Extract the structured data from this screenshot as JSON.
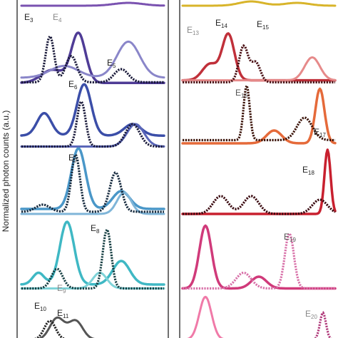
{
  "chart_data": {
    "type": "line",
    "ylabel": "Normalized photon counts (a.u.)",
    "grid": false,
    "legend": "none",
    "columns": [
      {
        "panels": [
          {
            "labels": [],
            "solid": [
              {
                "color": "#7a52b0",
                "peaks": [
                  {
                    "x": 0.75,
                    "h": 0.1,
                    "w": 0.1
                  }
                ],
                "base": 0.05,
                "w": 3
              }
            ],
            "dashed": []
          },
          {
            "labels": [
              {
                "main": "E",
                "sub": "3",
                "color": "#222222"
              },
              {
                "main": "E",
                "sub": "4",
                "color": "#888888"
              },
              {
                "main": "E",
                "sub": "5",
                "color": "#222222"
              }
            ],
            "solid": [
              {
                "color": "#4f3c96",
                "peaks": [
                  {
                    "x": 0.4,
                    "h": 0.75,
                    "w": 0.05
                  },
                  {
                    "x": 0.22,
                    "h": 0.2,
                    "w": 0.08
                  }
                ],
                "base": 0.04,
                "w": 3.5
              },
              {
                "color": "#8a86c9",
                "peaks": [
                  {
                    "x": 0.75,
                    "h": 0.55,
                    "w": 0.08
                  },
                  {
                    "x": 0.3,
                    "h": 0.18,
                    "w": 0.1
                  }
                ],
                "base": 0.12,
                "w": 3
              }
            ],
            "dashed": [
              {
                "color": "#1a1a3a",
                "peaks": [
                  {
                    "x": 0.2,
                    "h": 0.7,
                    "w": 0.03
                  },
                  {
                    "x": 0.35,
                    "h": 0.4,
                    "w": 0.04
                  },
                  {
                    "x": 0.7,
                    "h": 0.2,
                    "w": 0.05
                  }
                ],
                "base": 0.05
              }
            ]
          },
          {
            "labels": [
              {
                "main": "E",
                "sub": "6",
                "color": "#222222"
              }
            ],
            "solid": [
              {
                "color": "#3b4ea8",
                "peaks": [
                  {
                    "x": 0.44,
                    "h": 0.8,
                    "w": 0.05
                  },
                  {
                    "x": 0.16,
                    "h": 0.35,
                    "w": 0.05
                  },
                  {
                    "x": 0.78,
                    "h": 0.18,
                    "w": 0.06
                  }
                ],
                "base": 0.22,
                "w": 3.5
              },
              {
                "color": "#5a66b8",
                "peaks": [
                  {
                    "x": 0.8,
                    "h": 0.35,
                    "w": 0.06
                  }
                ],
                "base": 0.05,
                "w": 3
              }
            ],
            "dashed": [
              {
                "color": "#1a1a3a",
                "peaks": [
                  {
                    "x": 0.42,
                    "h": 0.7,
                    "w": 0.03
                  },
                  {
                    "x": 0.78,
                    "h": 0.35,
                    "w": 0.05
                  }
                ],
                "base": 0.05
              }
            ]
          },
          {
            "labels": [
              {
                "main": "E",
                "sub": "7",
                "color": "#222222"
              }
            ],
            "solid": [
              {
                "color": "#4a97c8",
                "peaks": [
                  {
                    "x": 0.4,
                    "h": 0.85,
                    "w": 0.05
                  },
                  {
                    "x": 0.7,
                    "h": 0.25,
                    "w": 0.06
                  }
                ],
                "base": 0.12,
                "w": 3.5
              },
              {
                "color": "#7fb5d8",
                "peaks": [
                  {
                    "x": 0.72,
                    "h": 0.3,
                    "w": 0.05
                  }
                ],
                "base": 0.05,
                "w": 3
              }
            ],
            "dashed": [
              {
                "color": "#162a3e",
                "peaks": [
                  {
                    "x": 0.38,
                    "h": 0.8,
                    "w": 0.03
                  },
                  {
                    "x": 0.66,
                    "h": 0.55,
                    "w": 0.04
                  },
                  {
                    "x": 0.15,
                    "h": 0.1,
                    "w": 0.05
                  }
                ],
                "base": 0.08
              }
            ]
          },
          {
            "labels": [
              {
                "main": "E",
                "sub": "8",
                "color": "#222222"
              },
              {
                "main": "E",
                "sub": "9",
                "color": "#888888"
              }
            ],
            "solid": [
              {
                "color": "#3fb8c4",
                "peaks": [
                  {
                    "x": 0.32,
                    "h": 0.8,
                    "w": 0.05
                  },
                  {
                    "x": 0.7,
                    "h": 0.3,
                    "w": 0.06
                  },
                  {
                    "x": 0.12,
                    "h": 0.15,
                    "w": 0.04
                  }
                ],
                "base": 0.1,
                "w": 3.5
              },
              {
                "color": "#7fd3d8",
                "peaks": [
                  {
                    "x": 0.55,
                    "h": 0.2,
                    "w": 0.05
                  }
                ],
                "base": 0.05,
                "w": 3
              }
            ],
            "dashed": [
              {
                "color": "#153e42",
                "peaks": [
                  {
                    "x": 0.6,
                    "h": 0.75,
                    "w": 0.03
                  },
                  {
                    "x": 0.25,
                    "h": 0.25,
                    "w": 0.04
                  }
                ],
                "base": 0.05
              }
            ]
          },
          {
            "labels": [
              {
                "main": "E",
                "sub": "10",
                "color": "#222222"
              },
              {
                "main": "E",
                "sub": "11",
                "color": "#222222"
              }
            ],
            "solid": [
              {
                "color": "#555555",
                "peaks": [
                  {
                    "x": 0.25,
                    "h": 0.4,
                    "w": 0.05
                  },
                  {
                    "x": 0.38,
                    "h": 0.35,
                    "w": 0.05
                  }
                ],
                "base": 0.05,
                "w": 3
              }
            ],
            "dashed": [
              {
                "color": "#222222",
                "peaks": [
                  {
                    "x": 0.2,
                    "h": 0.35,
                    "w": 0.04
                  }
                ],
                "base": 0.05
              }
            ]
          }
        ]
      },
      {
        "panels": [
          {
            "labels": [],
            "solid": [
              {
                "color": "#d8b42a",
                "peaks": [
                  {
                    "x": 0.45,
                    "h": 0.15,
                    "w": 0.08
                  },
                  {
                    "x": 0.75,
                    "h": 0.1,
                    "w": 0.08
                  }
                ],
                "base": 0.05,
                "w": 3
              }
            ],
            "dashed": []
          },
          {
            "labels": [
              {
                "main": "E",
                "sub": "13",
                "color": "#888888"
              },
              {
                "main": "E",
                "sub": "14",
                "color": "#222222"
              },
              {
                "main": "E",
                "sub": "15",
                "color": "#222222"
              }
            ],
            "solid": [
              {
                "color": "#c0303a",
                "peaks": [
                  {
                    "x": 0.3,
                    "h": 0.7,
                    "w": 0.04
                  },
                  {
                    "x": 0.18,
                    "h": 0.25,
                    "w": 0.05
                  }
                ],
                "base": 0.08,
                "w": 3.5
              },
              {
                "color": "#e68a8a",
                "peaks": [
                  {
                    "x": 0.85,
                    "h": 0.35,
                    "w": 0.05
                  }
                ],
                "base": 0.08,
                "w": 3
              }
            ],
            "dashed": [
              {
                "color": "#4a1014",
                "peaks": [
                  {
                    "x": 0.4,
                    "h": 0.55,
                    "w": 0.03
                  },
                  {
                    "x": 0.48,
                    "h": 0.3,
                    "w": 0.03
                  }
                ],
                "base": 0.05
              }
            ]
          },
          {
            "labels": [
              {
                "main": "E",
                "sub": "16",
                "color": "#555555"
              },
              {
                "main": "E",
                "sub": "17",
                "color": "#222222"
              }
            ],
            "solid": [
              {
                "color": "#e56a3a",
                "peaks": [
                  {
                    "x": 0.9,
                    "h": 0.85,
                    "w": 0.03
                  },
                  {
                    "x": 0.6,
                    "h": 0.2,
                    "w": 0.05
                  }
                ],
                "base": 0.1,
                "w": 3.5
              }
            ],
            "dashed": [
              {
                "color": "#3a1208",
                "peaks": [
                  {
                    "x": 0.42,
                    "h": 0.85,
                    "w": 0.02
                  },
                  {
                    "x": 0.8,
                    "h": 0.35,
                    "w": 0.05
                  }
                ],
                "base": 0.15
              }
            ]
          },
          {
            "labels": [
              {
                "main": "E",
                "sub": "18",
                "color": "#222222"
              }
            ],
            "solid": [
              {
                "color": "#c8202f",
                "peaks": [
                  {
                    "x": 0.95,
                    "h": 0.9,
                    "w": 0.02
                  }
                ],
                "base": 0.05,
                "w": 3.5
              }
            ],
            "dashed": [
              {
                "color": "#3a0a10",
                "peaks": [
                  {
                    "x": 0.25,
                    "h": 0.25,
                    "w": 0.05
                  },
                  {
                    "x": 0.45,
                    "h": 0.25,
                    "w": 0.05
                  },
                  {
                    "x": 0.9,
                    "h": 0.2,
                    "w": 0.05
                  }
                ],
                "base": 0.05
              }
            ]
          },
          {
            "labels": [
              {
                "main": "E",
                "sub": "19",
                "color": "#555555"
              }
            ],
            "solid": [
              {
                "color": "#d03a7a",
                "peaks": [
                  {
                    "x": 0.15,
                    "h": 0.8,
                    "w": 0.04
                  },
                  {
                    "x": 0.5,
                    "h": 0.15,
                    "w": 0.05
                  }
                ],
                "base": 0.05,
                "w": 3.5
              }
            ],
            "dashed": [
              {
                "color": "#d870a8",
                "peaks": [
                  {
                    "x": 0.7,
                    "h": 0.7,
                    "w": 0.03
                  },
                  {
                    "x": 0.4,
                    "h": 0.2,
                    "w": 0.05
                  }
                ],
                "base": 0.05
              }
            ]
          },
          {
            "labels": [
              {
                "main": "E",
                "sub": "20",
                "color": "#888888"
              }
            ],
            "solid": [
              {
                "color": "#f07aa8",
                "peaks": [
                  {
                    "x": 0.15,
                    "h": 0.8,
                    "w": 0.04
                  }
                ],
                "base": 0.05,
                "w": 3
              }
            ],
            "dashed": [
              {
                "color": "#b03a7a",
                "peaks": [
                  {
                    "x": 0.92,
                    "h": 0.5,
                    "w": 0.02
                  }
                ],
                "base": 0.05
              }
            ]
          }
        ]
      }
    ]
  }
}
